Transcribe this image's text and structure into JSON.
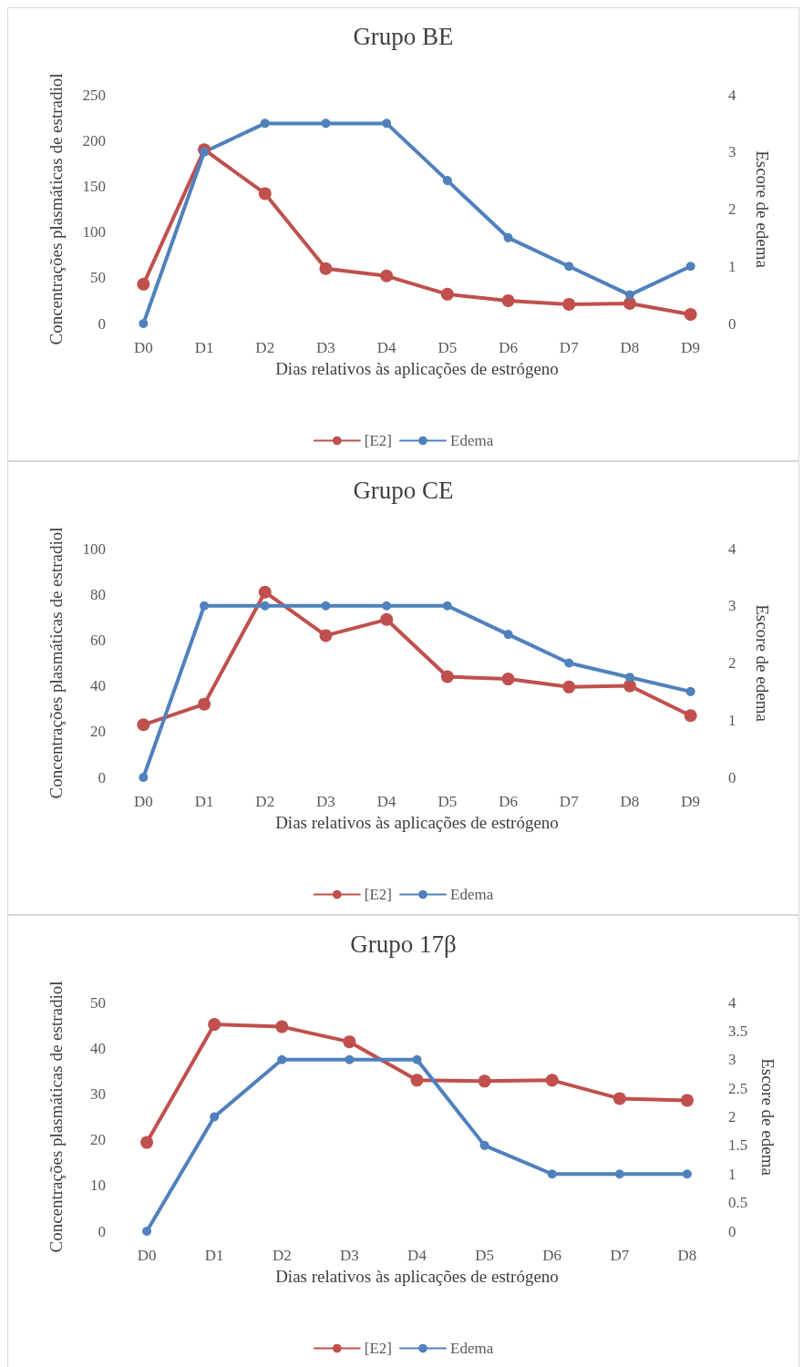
{
  "chart_data": [
    {
      "type": "line",
      "title": "Grupo BE",
      "xlabel": "Dias relativos às aplicações de estrógeno",
      "ylabel": "Concentrações plasmáticas de estradiol",
      "y2label": "Escore de edema",
      "categories": [
        "D0",
        "D1",
        "D2",
        "D3",
        "D4",
        "D5",
        "D6",
        "D7",
        "D8",
        "D9"
      ],
      "series": [
        {
          "name": "[E2]",
          "color": "#c0504d",
          "values": [
            43,
            190,
            142,
            60,
            52,
            32,
            25,
            21,
            22,
            10
          ]
        },
        {
          "name": "Edema",
          "color": "#4f81bd",
          "axis": "y2",
          "values": [
            0,
            3,
            3.5,
            3.5,
            3.5,
            2.5,
            1.5,
            1,
            0.5,
            1
          ]
        }
      ],
      "ylim": [
        0,
        250
      ],
      "yticks": [
        0,
        50,
        100,
        150,
        200,
        250
      ],
      "y2lim": [
        0,
        4
      ],
      "y2ticks": [
        0,
        1,
        2,
        3,
        4
      ],
      "grid": false,
      "legend": "bottom",
      "marker": "circle",
      "line_style": "solid"
    },
    {
      "type": "line",
      "title": "Grupo CE",
      "xlabel": "Dias relativos às aplicações de estrógeno",
      "ylabel": "Concentrações plasmáticas de estradiol",
      "y2label": "Escore de edema",
      "categories": [
        "D0",
        "D1",
        "D2",
        "D3",
        "D4",
        "D5",
        "D6",
        "D7",
        "D8",
        "D9"
      ],
      "series": [
        {
          "name": "[E2]",
          "color": "#c0504d",
          "values": [
            23,
            32,
            81,
            62,
            69,
            44,
            43,
            39.5,
            40,
            27
          ]
        },
        {
          "name": "Edema",
          "color": "#4f81bd",
          "axis": "y2",
          "values": [
            0,
            3,
            3,
            3,
            3,
            3,
            2.5,
            2,
            1.75,
            1.5
          ]
        }
      ],
      "ylim": [
        0,
        100
      ],
      "yticks": [
        0,
        20,
        40,
        60,
        80,
        100
      ],
      "y2lim": [
        0,
        4
      ],
      "y2ticks": [
        0,
        1,
        2,
        3,
        4
      ],
      "grid": false,
      "legend": "bottom",
      "marker": "circle",
      "line_style": "solid"
    },
    {
      "type": "line",
      "title": "Grupo 17β",
      "xlabel": "Dias relativos às aplicações de estrógeno",
      "ylabel": "Concentrações plasmáticas de estradiol",
      "y2label": "Escore de edema",
      "categories": [
        "D0",
        "D1",
        "D2",
        "D3",
        "D4",
        "D5",
        "D6",
        "D7",
        "D8"
      ],
      "series": [
        {
          "name": "[E2]",
          "color": "#c0504d",
          "values": [
            19.4,
            45.2,
            44.7,
            41.4,
            33,
            32.8,
            33,
            29,
            28.6
          ]
        },
        {
          "name": "Edema",
          "color": "#4f81bd",
          "axis": "y2",
          "values": [
            0,
            2,
            3,
            3,
            3,
            1.5,
            1,
            1,
            1
          ]
        }
      ],
      "ylim": [
        0,
        50
      ],
      "yticks": [
        0,
        10,
        20,
        30,
        40,
        50
      ],
      "y2lim": [
        0,
        4
      ],
      "y2ticks": [
        0,
        0.5,
        1,
        1.5,
        2,
        2.5,
        3,
        3.5,
        4
      ],
      "grid": false,
      "legend": "bottom",
      "marker": "circle",
      "line_style": "solid"
    }
  ]
}
